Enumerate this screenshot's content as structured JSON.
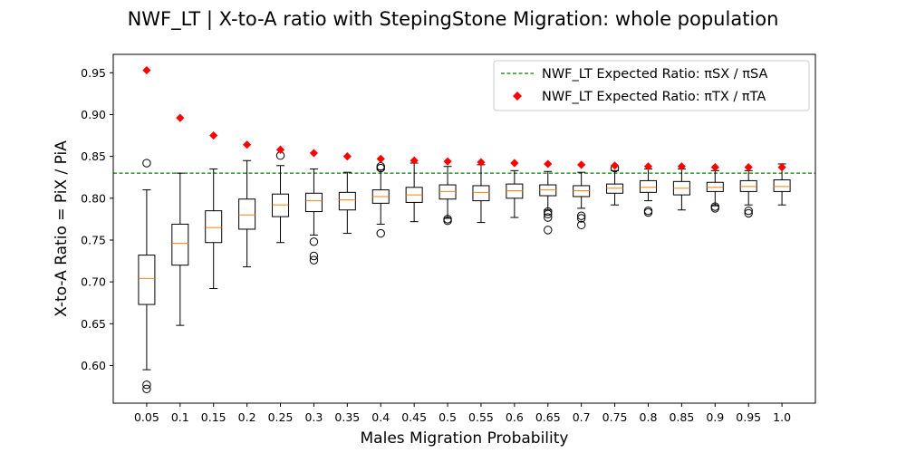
{
  "chart_data": {
    "type": "box",
    "title": "NWF_LT | X-to-A ratio with StepingStone Migration: whole population",
    "xlabel": "Males Migration Probability",
    "ylabel": "X-to-A Ratio = PiX / PiA",
    "ylim": [
      0.555,
      0.972
    ],
    "yticks": [
      "0.60",
      "0.65",
      "0.70",
      "0.75",
      "0.80",
      "0.85",
      "0.90",
      "0.95"
    ],
    "yticks_values": [
      0.6,
      0.65,
      0.7,
      0.75,
      0.8,
      0.85,
      0.9,
      0.95
    ],
    "grid": false,
    "legend_position": "top-right",
    "categories": [
      "0.05",
      "0.1",
      "0.15",
      "0.2",
      "0.25",
      "0.3",
      "0.35",
      "0.4",
      "0.45",
      "0.5",
      "0.55",
      "0.6",
      "0.65",
      "0.7",
      "0.75",
      "0.8",
      "0.85",
      "0.9",
      "0.95",
      "1.0"
    ],
    "boxes": [
      {
        "whislo": 0.595,
        "q1": 0.673,
        "med": 0.704,
        "q3": 0.732,
        "whishi": 0.81,
        "fliers": [
          0.842,
          0.577,
          0.572
        ]
      },
      {
        "whislo": 0.648,
        "q1": 0.72,
        "med": 0.746,
        "q3": 0.769,
        "whishi": 0.83,
        "fliers": []
      },
      {
        "whislo": 0.692,
        "q1": 0.747,
        "med": 0.765,
        "q3": 0.785,
        "whishi": 0.835,
        "fliers": []
      },
      {
        "whislo": 0.718,
        "q1": 0.763,
        "med": 0.78,
        "q3": 0.799,
        "whishi": 0.845,
        "fliers": []
      },
      {
        "whislo": 0.747,
        "q1": 0.778,
        "med": 0.792,
        "q3": 0.805,
        "whishi": 0.839,
        "fliers": [
          0.851
        ]
      },
      {
        "whislo": 0.756,
        "q1": 0.784,
        "med": 0.797,
        "q3": 0.806,
        "whishi": 0.835,
        "fliers": [
          0.748,
          0.731,
          0.726
        ]
      },
      {
        "whislo": 0.758,
        "q1": 0.786,
        "med": 0.798,
        "q3": 0.807,
        "whishi": 0.831,
        "fliers": []
      },
      {
        "whislo": 0.769,
        "q1": 0.794,
        "med": 0.802,
        "q3": 0.81,
        "whishi": 0.834,
        "fliers": [
          0.838,
          0.836,
          0.758
        ]
      },
      {
        "whislo": 0.772,
        "q1": 0.795,
        "med": 0.804,
        "q3": 0.813,
        "whishi": 0.842,
        "fliers": []
      },
      {
        "whislo": 0.776,
        "q1": 0.799,
        "med": 0.808,
        "q3": 0.816,
        "whishi": 0.838,
        "fliers": [
          0.775,
          0.773
        ]
      },
      {
        "whislo": 0.771,
        "q1": 0.797,
        "med": 0.807,
        "q3": 0.815,
        "whishi": 0.84,
        "fliers": []
      },
      {
        "whislo": 0.777,
        "q1": 0.8,
        "med": 0.809,
        "q3": 0.817,
        "whishi": 0.833,
        "fliers": []
      },
      {
        "whislo": 0.786,
        "q1": 0.803,
        "med": 0.81,
        "q3": 0.816,
        "whishi": 0.832,
        "fliers": [
          0.784,
          0.781,
          0.777,
          0.762
        ]
      },
      {
        "whislo": 0.788,
        "q1": 0.802,
        "med": 0.809,
        "q3": 0.815,
        "whishi": 0.831,
        "fliers": [
          0.779,
          0.776,
          0.768
        ]
      },
      {
        "whislo": 0.792,
        "q1": 0.806,
        "med": 0.812,
        "q3": 0.817,
        "whishi": 0.833,
        "fliers": [
          0.836
        ]
      },
      {
        "whislo": 0.797,
        "q1": 0.807,
        "med": 0.813,
        "q3": 0.821,
        "whishi": 0.835,
        "fliers": [
          0.785,
          0.783
        ]
      },
      {
        "whislo": 0.786,
        "q1": 0.804,
        "med": 0.812,
        "q3": 0.82,
        "whishi": 0.835,
        "fliers": []
      },
      {
        "whislo": 0.791,
        "q1": 0.808,
        "med": 0.813,
        "q3": 0.819,
        "whishi": 0.833,
        "fliers": [
          0.79,
          0.788
        ]
      },
      {
        "whislo": 0.792,
        "q1": 0.808,
        "med": 0.814,
        "q3": 0.821,
        "whishi": 0.833,
        "fliers": [
          0.785,
          0.782
        ]
      },
      {
        "whislo": 0.792,
        "q1": 0.808,
        "med": 0.814,
        "q3": 0.822,
        "whishi": 0.841,
        "fliers": []
      }
    ],
    "series": [
      {
        "name": "NWF_LT Expected Ratio: πSX / πSA",
        "type": "hline",
        "value": 0.83,
        "color": "#008000",
        "style": "dashed"
      },
      {
        "name": "NWF_LT Expected Ratio: πTX / πTA",
        "type": "scatter",
        "marker": "diamond",
        "color": "#ff0000",
        "values": [
          0.953,
          0.896,
          0.875,
          0.864,
          0.858,
          0.854,
          0.85,
          0.847,
          0.845,
          0.844,
          0.843,
          0.842,
          0.841,
          0.84,
          0.839,
          0.838,
          0.838,
          0.837,
          0.837,
          0.837
        ]
      }
    ],
    "colors": {
      "box": "#000000",
      "median": "#ff7f0e",
      "flier": "#000000"
    }
  }
}
